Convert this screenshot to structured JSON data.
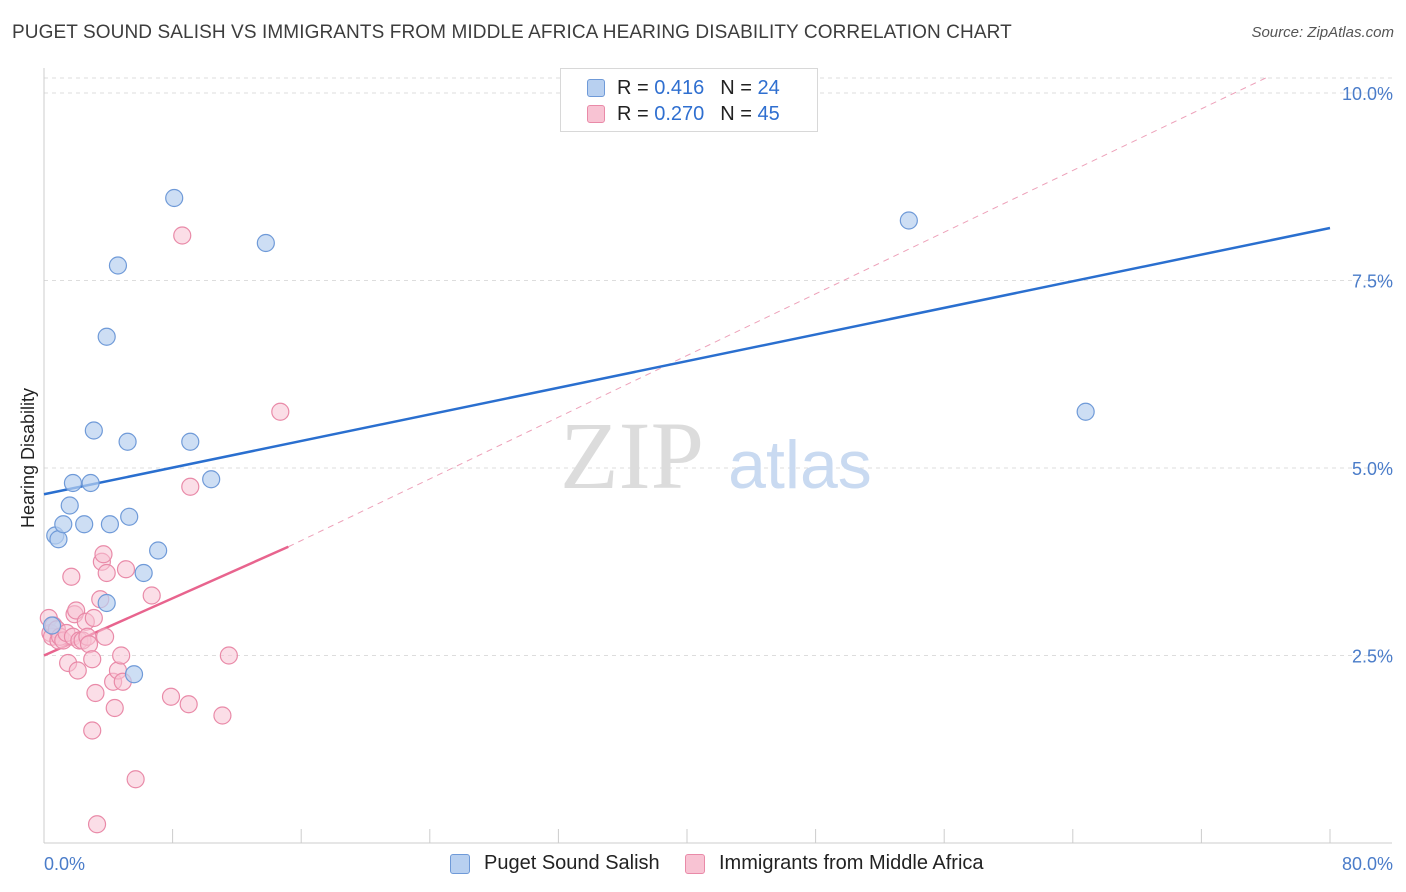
{
  "title": "PUGET SOUND SALISH VS IMMIGRANTS FROM MIDDLE AFRICA HEARING DISABILITY CORRELATION CHART",
  "source": "Source: ZipAtlas.com",
  "watermark": {
    "zip": "ZIP",
    "atlas": "atlas"
  },
  "legend": {
    "r_label": "R =",
    "n_label": "N =",
    "rows": [
      {
        "r": "0.416",
        "n": "24"
      },
      {
        "r": "0.270",
        "n": "45"
      }
    ]
  },
  "colors": {
    "series1_fill": "#b8d0f0",
    "series1_stroke": "#6f9ad8",
    "series1_line": "#2a6fcf",
    "series2_fill": "#f8c3d3",
    "series2_stroke": "#e98aa8",
    "series2_line": "#e8648e",
    "tick_text": "#4a7cc9"
  },
  "chart_data": {
    "type": "scatter",
    "title": "PUGET SOUND SALISH VS IMMIGRANTS FROM MIDDLE AFRICA HEARING DISABILITY CORRELATION CHART",
    "xlabel": "",
    "ylabel": "Hearing Disability",
    "xlim": [
      0,
      80
    ],
    "ylim": [
      0,
      10.2
    ],
    "x_tick_labels": [
      "0.0%",
      "80.0%"
    ],
    "y_ticks": [
      2.5,
      5.0,
      7.5,
      10.0
    ],
    "y_tick_labels": [
      "2.5%",
      "5.0%",
      "7.5%",
      "10.0%"
    ],
    "legend_position": "bottom",
    "series": [
      {
        "name": "Puget Sound Salish",
        "r": 0.416,
        "n": 24,
        "points": [
          [
            0.5,
            2.9
          ],
          [
            0.7,
            4.1
          ],
          [
            0.9,
            4.05
          ],
          [
            1.2,
            4.25
          ],
          [
            1.6,
            4.5
          ],
          [
            1.8,
            4.8
          ],
          [
            2.5,
            4.25
          ],
          [
            2.9,
            4.8
          ],
          [
            3.1,
            5.5
          ],
          [
            3.9,
            3.2
          ],
          [
            4.1,
            4.25
          ],
          [
            4.6,
            7.7
          ],
          [
            3.9,
            6.75
          ],
          [
            5.2,
            5.35
          ],
          [
            5.3,
            4.35
          ],
          [
            5.6,
            2.25
          ],
          [
            6.2,
            3.6
          ],
          [
            7.1,
            3.9
          ],
          [
            8.1,
            8.6
          ],
          [
            9.1,
            5.35
          ],
          [
            10.4,
            4.85
          ],
          [
            13.8,
            8.0
          ],
          [
            53.8,
            8.3
          ],
          [
            64.8,
            5.75
          ]
        ],
        "trend": {
          "x": [
            0,
            80
          ],
          "y": [
            4.65,
            8.2
          ]
        }
      },
      {
        "name": "Immigrants from Middle Africa",
        "r": 0.27,
        "n": 45,
        "points": [
          [
            0.3,
            3.0
          ],
          [
            0.4,
            2.8
          ],
          [
            0.5,
            2.75
          ],
          [
            0.6,
            2.9
          ],
          [
            0.8,
            2.85
          ],
          [
            0.9,
            2.7
          ],
          [
            1.0,
            2.75
          ],
          [
            1.2,
            2.7
          ],
          [
            1.4,
            2.8
          ],
          [
            1.5,
            2.4
          ],
          [
            1.7,
            3.55
          ],
          [
            1.8,
            2.75
          ],
          [
            1.9,
            3.05
          ],
          [
            2.0,
            3.1
          ],
          [
            2.1,
            2.3
          ],
          [
            2.2,
            2.7
          ],
          [
            2.4,
            2.7
          ],
          [
            2.6,
            2.95
          ],
          [
            2.7,
            2.75
          ],
          [
            2.8,
            2.65
          ],
          [
            3.0,
            2.45
          ],
          [
            3.0,
            1.5
          ],
          [
            3.1,
            3.0
          ],
          [
            3.2,
            2.0
          ],
          [
            3.3,
            0.25
          ],
          [
            3.5,
            3.25
          ],
          [
            3.6,
            3.75
          ],
          [
            3.7,
            3.85
          ],
          [
            3.8,
            2.75
          ],
          [
            3.9,
            3.6
          ],
          [
            4.3,
            2.15
          ],
          [
            4.4,
            1.8
          ],
          [
            4.6,
            2.3
          ],
          [
            4.8,
            2.5
          ],
          [
            4.9,
            2.15
          ],
          [
            5.1,
            3.65
          ],
          [
            5.7,
            0.85
          ],
          [
            6.7,
            3.3
          ],
          [
            7.9,
            1.95
          ],
          [
            8.6,
            8.1
          ],
          [
            9.0,
            1.85
          ],
          [
            9.1,
            4.75
          ],
          [
            11.1,
            1.7
          ],
          [
            11.5,
            2.5
          ],
          [
            14.7,
            5.75
          ]
        ],
        "trend": {
          "x": [
            0,
            15.2
          ],
          "y": [
            2.5,
            3.95
          ]
        },
        "trend_extended": {
          "x": [
            15.2,
            76
          ],
          "y": [
            3.95,
            10.2
          ]
        }
      }
    ]
  },
  "bottom_legend": [
    {
      "label": "Puget Sound Salish"
    },
    {
      "label": "Immigrants from Middle Africa"
    }
  ]
}
